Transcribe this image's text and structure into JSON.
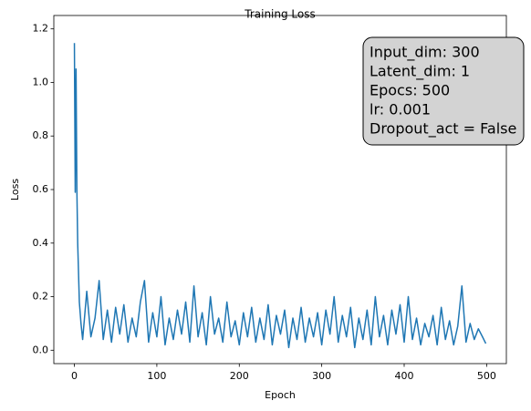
{
  "chart_data": {
    "type": "line",
    "title": "Training Loss",
    "xlabel": "Epoch",
    "ylabel": "Loss",
    "annotation": [
      "Input_dim: 300",
      "Latent_dim: 1",
      "Epocs: 500",
      "lr: 0.001",
      "Dropout_act = False"
    ],
    "xlim": [
      -24.95,
      523.95
    ],
    "ylim": [
      -0.05,
      1.25
    ],
    "xticks": [
      0,
      100,
      200,
      300,
      400,
      500
    ],
    "yticks": [
      {
        "value": 0,
        "label": "0.0"
      },
      {
        "value": 0.2,
        "label": "0.2"
      },
      {
        "value": 0.4,
        "label": "0.4"
      },
      {
        "value": 0.6,
        "label": "0.6"
      },
      {
        "value": 0.8,
        "label": "0.8"
      },
      {
        "value": 1,
        "label": "1.0"
      },
      {
        "value": 1.2,
        "label": "1.2"
      }
    ],
    "x": [
      0,
      1,
      2,
      3,
      4,
      6,
      8,
      10,
      15,
      20,
      25,
      30,
      35,
      40,
      45,
      50,
      55,
      60,
      65,
      70,
      75,
      80,
      85,
      90,
      95,
      100,
      105,
      110,
      115,
      120,
      125,
      130,
      135,
      140,
      145,
      150,
      155,
      160,
      165,
      170,
      175,
      180,
      185,
      190,
      195,
      200,
      205,
      210,
      215,
      220,
      225,
      230,
      235,
      240,
      245,
      250,
      255,
      260,
      265,
      270,
      275,
      280,
      285,
      290,
      295,
      300,
      305,
      310,
      315,
      320,
      325,
      330,
      335,
      340,
      345,
      350,
      355,
      360,
      365,
      370,
      375,
      380,
      385,
      390,
      395,
      400,
      405,
      410,
      415,
      420,
      425,
      430,
      435,
      440,
      445,
      450,
      455,
      460,
      465,
      470,
      475,
      480,
      485,
      490,
      495,
      499
    ],
    "series": [
      {
        "name": "Loss",
        "color": "#1f77b4",
        "values": [
          1.147,
          0.59,
          1.05,
          0.6,
          0.4,
          0.18,
          0.1,
          0.04,
          0.22,
          0.05,
          0.12,
          0.26,
          0.04,
          0.15,
          0.03,
          0.16,
          0.06,
          0.17,
          0.03,
          0.12,
          0.05,
          0.18,
          0.26,
          0.03,
          0.14,
          0.05,
          0.2,
          0.02,
          0.12,
          0.04,
          0.15,
          0.06,
          0.18,
          0.03,
          0.24,
          0.05,
          0.14,
          0.02,
          0.2,
          0.06,
          0.12,
          0.03,
          0.18,
          0.05,
          0.11,
          0.02,
          0.14,
          0.05,
          0.16,
          0.03,
          0.12,
          0.04,
          0.17,
          0.02,
          0.13,
          0.06,
          0.15,
          0.01,
          0.12,
          0.04,
          0.16,
          0.03,
          0.12,
          0.05,
          0.14,
          0.02,
          0.15,
          0.06,
          0.2,
          0.03,
          0.13,
          0.05,
          0.16,
          0.01,
          0.12,
          0.04,
          0.15,
          0.02,
          0.2,
          0.05,
          0.13,
          0.02,
          0.15,
          0.06,
          0.17,
          0.03,
          0.2,
          0.04,
          0.12,
          0.02,
          0.1,
          0.05,
          0.13,
          0.02,
          0.16,
          0.04,
          0.11,
          0.02,
          0.09,
          0.24,
          0.03,
          0.1,
          0.04,
          0.08,
          0.05,
          0.025
        ]
      }
    ]
  }
}
